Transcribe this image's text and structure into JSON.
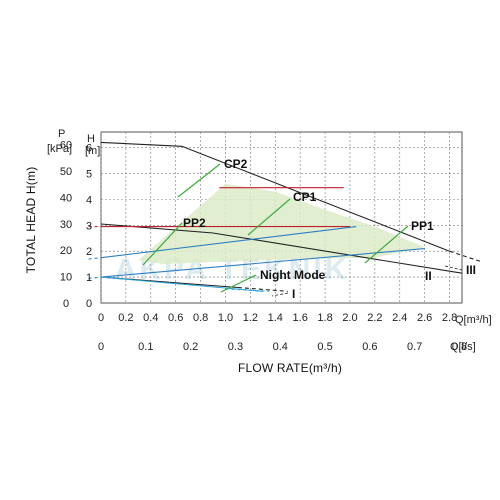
{
  "chart_data": {
    "type": "line",
    "watermark": "AKPA TEKNIK",
    "xlabel": "FLOW RATE(m³/h)",
    "ylabel": "TOTAL HEAD H(m)",
    "x_top": {
      "unit": "Q[m³/h]",
      "range": [
        0,
        2.9
      ],
      "ticks": [
        "0",
        "0.2",
        "0.4",
        "0.6",
        "0.8",
        "1.0",
        "1.2",
        "1.4",
        "1.6",
        "1.8",
        "2.0",
        "2.2",
        "2.4",
        "2.6",
        "2.8"
      ]
    },
    "x_bottom": {
      "unit": "Q[l/s]",
      "ticks": [
        "0",
        "0.1",
        "0.2",
        "0.3",
        "0.4",
        "0.5",
        "0.6",
        "0.7",
        "0.8"
      ]
    },
    "y_left": {
      "header": "P",
      "unit": "[kPa]",
      "ticks": [
        "0",
        "10",
        "20",
        "30",
        "40",
        "50",
        "60"
      ]
    },
    "y_right": {
      "header": "H",
      "unit": "[m]",
      "range": [
        0,
        6.6
      ],
      "ticks": [
        "0",
        "1",
        "2",
        "3",
        "4",
        "5",
        "6"
      ]
    },
    "region_color": "#dcebc8",
    "series": [
      {
        "name": "III",
        "color": "#222222",
        "x": [
          0,
          0.65,
          2.8
        ],
        "y": [
          6.2,
          6.05,
          2.0
        ],
        "tail_x": [
          2.8,
          3.05
        ],
        "tail_y": [
          2.0,
          1.6
        ]
      },
      {
        "name": "II",
        "color": "#222222",
        "x": [
          0,
          0.9,
          2.9
        ],
        "y": [
          3.05,
          2.7,
          1.15
        ]
      },
      {
        "name": "I",
        "color": "#222222",
        "x": [
          0,
          1.1
        ],
        "y": [
          1.0,
          0.6
        ],
        "tail_x": [
          1.1,
          1.5
        ],
        "tail_y": [
          0.6,
          0.45
        ]
      },
      {
        "name": "CP2",
        "color": "#c0202c",
        "x": [
          0.95,
          1.95
        ],
        "y": [
          4.45,
          4.45
        ]
      },
      {
        "name": "CP1",
        "color": "#c0202c",
        "x": [
          0.0,
          2.0
        ],
        "y": [
          2.95,
          2.95
        ],
        "dash_x": [
          -0.1,
          0.0
        ],
        "dash_y": [
          2.95,
          2.95
        ]
      },
      {
        "name": "PP2",
        "color": "#2e7fc4",
        "x": [
          0,
          2.05
        ],
        "y": [
          1.75,
          2.95
        ],
        "dash_x": [
          -0.1,
          0
        ],
        "dash_y": [
          1.7,
          1.75
        ]
      },
      {
        "name": "PP1",
        "color": "#2e7fc4",
        "x": [
          0,
          2.6
        ],
        "y": [
          1.0,
          2.1
        ],
        "dash_x": [
          -0.1,
          0
        ],
        "dash_y": [
          0.95,
          1.0
        ]
      },
      {
        "name": "Night Mode",
        "color": "#29a6d8",
        "x": [
          0,
          1.3
        ],
        "y": [
          1.0,
          0.45
        ],
        "dash_x": [
          1.0,
          1.35
        ],
        "dash_y": [
          0.55,
          0.45
        ]
      }
    ],
    "annotations": [
      {
        "text": "CP2",
        "color": "#3aab3a"
      },
      {
        "text": "CP1",
        "color": "#3aab3a"
      },
      {
        "text": "PP2",
        "color": "#3aab3a"
      },
      {
        "text": "PP1",
        "color": "#3aab3a"
      },
      {
        "text": "Night Mode",
        "color": "#3aab3a"
      },
      {
        "text": "I"
      },
      {
        "text": "II"
      },
      {
        "text": "III"
      }
    ]
  }
}
